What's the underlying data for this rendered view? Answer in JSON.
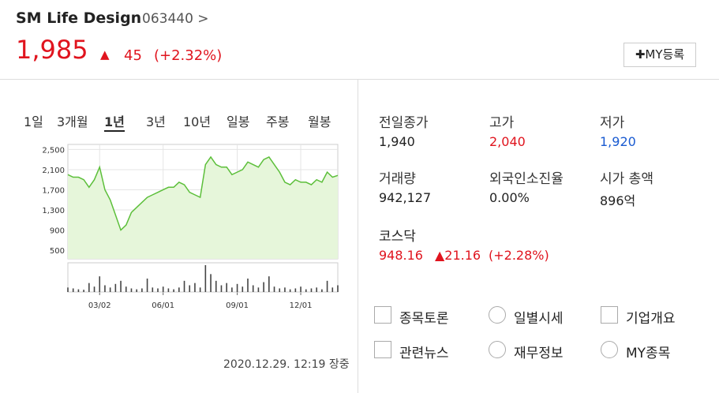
{
  "header": {
    "name": "SM Life Design",
    "code": "063440 >",
    "price": "1,985",
    "arrow": "▲",
    "change": "45",
    "percent": "(+2.32%)",
    "button": "✚MY등록"
  },
  "periods": [
    "1일",
    "3개월",
    "1년",
    "3년",
    "10년",
    "일봉",
    "주봉",
    "월봉"
  ],
  "chart_data": {
    "type": "line",
    "categories": [
      null,
      null,
      null,
      null,
      null,
      null,
      "03/02",
      null,
      null,
      null,
      null,
      null,
      null,
      null,
      null,
      null,
      null,
      null,
      "06/01",
      null,
      null,
      null,
      null,
      null,
      null,
      null,
      null,
      null,
      null,
      null,
      null,
      null,
      "09/01",
      null,
      null,
      null,
      null,
      null,
      null,
      null,
      null,
      null,
      null,
      null,
      "12/01",
      null,
      null,
      null,
      null,
      null,
      null,
      null
    ],
    "values": [
      2000,
      1950,
      1950,
      1900,
      1750,
      1900,
      2150,
      1700,
      1500,
      1200,
      900,
      1000,
      1250,
      1350,
      1450,
      1550,
      1600,
      1650,
      1700,
      1750,
      1750,
      1850,
      1800,
      1650,
      1600,
      1550,
      2200,
      2350,
      2200,
      2150,
      2150,
      2000,
      2050,
      2100,
      2250,
      2200,
      2150,
      2300,
      2350,
      2200,
      2050,
      1850,
      1800,
      1900,
      1850,
      1850,
      1800,
      1900,
      1850,
      2050,
      1950,
      1985
    ],
    "volume": [
      10,
      8,
      6,
      5,
      20,
      12,
      35,
      15,
      10,
      18,
      25,
      12,
      8,
      6,
      8,
      30,
      10,
      8,
      12,
      8,
      6,
      10,
      25,
      15,
      20,
      10,
      60,
      40,
      25,
      15,
      20,
      10,
      18,
      12,
      30,
      15,
      10,
      22,
      35,
      12,
      8,
      10,
      6,
      8,
      12,
      6,
      8,
      10,
      6,
      25,
      10,
      15
    ],
    "ylim": [
      330,
      2600
    ],
    "yticks": [
      {
        "value": 500,
        "label": "500"
      },
      {
        "value": 900,
        "label": "900"
      },
      {
        "value": 1300,
        "label": "1,300"
      },
      {
        "value": 1700,
        "label": "1,700"
      },
      {
        "value": 2100,
        "label": "2,100"
      },
      {
        "value": 2500,
        "label": "2,500"
      }
    ],
    "color": "#5cbf3a",
    "fill": "#e6f6da",
    "volume_color": "#444"
  },
  "timestamp": "2020.12.29. 12:19 장중",
  "stats": [
    {
      "label": "전일종가",
      "value": "1,940"
    },
    {
      "label": "고가",
      "value": "2,040"
    },
    {
      "label": "저가",
      "value": "1,920"
    },
    {
      "label": "거래량",
      "value": "942,127"
    },
    {
      "label": "외국인소진율",
      "value": "0.00%"
    },
    {
      "label": "시가 총액",
      "value": "896억"
    }
  ],
  "index": {
    "name": "코스닥",
    "value": "948.16",
    "change": "▲21.16",
    "percent": "(+2.28%)"
  },
  "links": [
    "종목토론",
    "일별시세",
    "기업개요",
    "관련뉴스",
    "재무정보",
    "MY종목"
  ]
}
